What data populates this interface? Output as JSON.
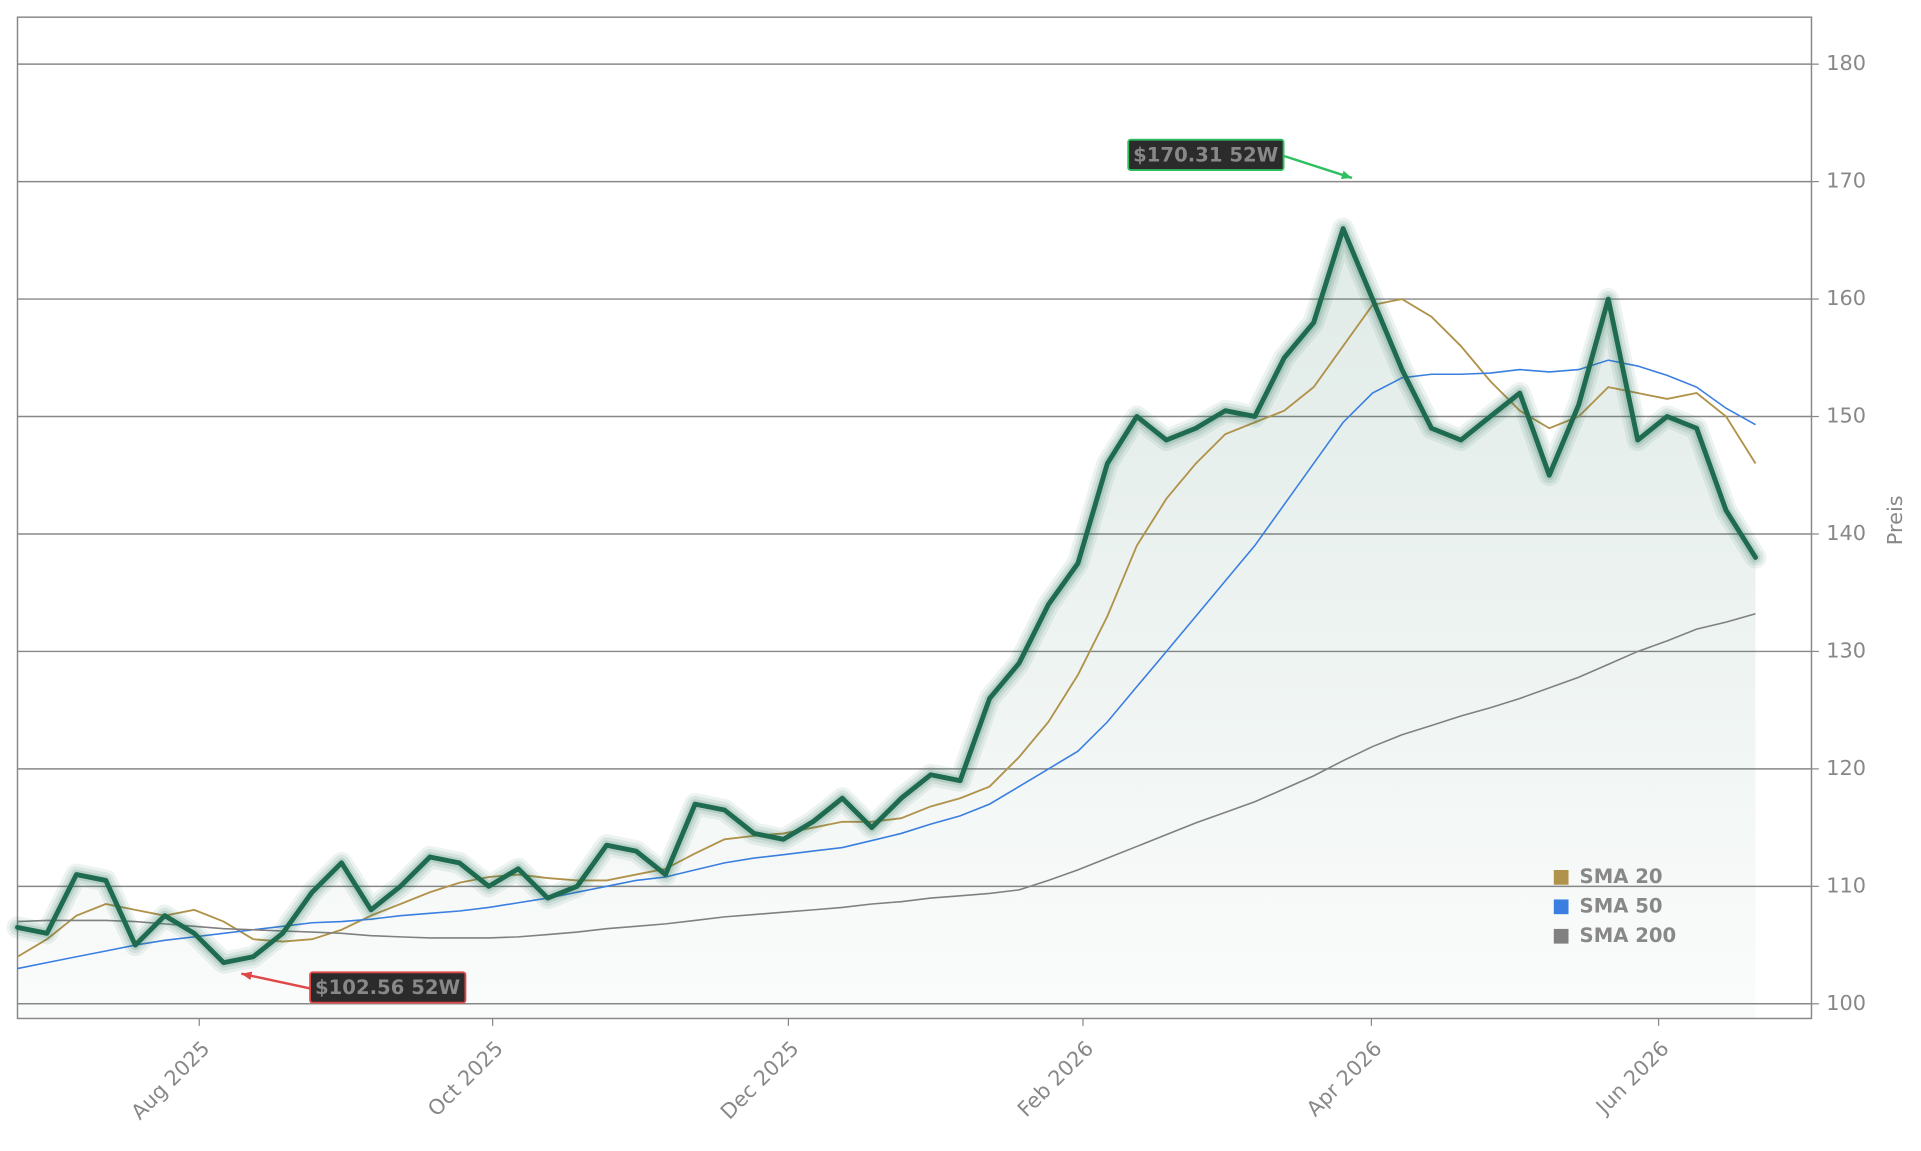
{
  "chart_data": {
    "type": "line",
    "y_label": "Preis",
    "xlim": [
      0,
      60.9
    ],
    "xticks": [
      {
        "value": 6.17,
        "label": "Aug 2025"
      },
      {
        "value": 16.13,
        "label": "Oct 2025"
      },
      {
        "value": 26.17,
        "label": "Dec 2025"
      },
      {
        "value": 36.17,
        "label": "Feb 2026"
      },
      {
        "value": 45.96,
        "label": "Apr 2026"
      },
      {
        "value": 55.71,
        "label": "Jun 2026"
      }
    ],
    "ylim": [
      98.75,
      184
    ],
    "yticks": [
      100,
      110,
      120,
      130,
      140,
      150,
      160,
      170,
      180
    ],
    "grid": true,
    "legend": "lower right",
    "series": [
      {
        "color": "#1e6b50",
        "values": [
          106.5,
          106,
          111,
          110.5,
          105,
          107.5,
          106,
          103.5,
          104,
          106,
          109.5,
          112,
          108,
          110,
          112.5,
          112,
          110,
          111.5,
          109,
          110,
          113.5,
          113,
          111,
          117,
          116.5,
          114.5,
          114,
          115.5,
          117.5,
          115,
          117.5,
          119.5,
          119,
          126,
          129,
          134,
          137.5,
          146,
          150,
          148,
          149,
          150.5,
          150,
          155,
          158,
          166,
          160,
          154,
          149,
          148,
          150,
          152,
          145,
          151,
          160,
          148,
          150,
          149,
          142,
          138
        ]
      },
      {
        "name": "SMA 20",
        "color": "#b0924a",
        "values": [
          104,
          105.5,
          107.5,
          108.5,
          108,
          107.5,
          108,
          107,
          105.5,
          105.3,
          105.5,
          106.3,
          107.5,
          108.5,
          109.5,
          110.3,
          110.8,
          111,
          110.7,
          110.5,
          110.5,
          111,
          111.5,
          112.8,
          114,
          114.3,
          114.5,
          115,
          115.5,
          115.5,
          115.8,
          116.8,
          117.5,
          118.5,
          121,
          124,
          128,
          133,
          139,
          143,
          146,
          148.5,
          149.5,
          150.5,
          152.5,
          156,
          159.5,
          160,
          158.5,
          156,
          153,
          150.5,
          149,
          150,
          152.5,
          152,
          151.5,
          152,
          150,
          146
        ]
      },
      {
        "name": "SMA 50",
        "color": "#3a7fe0",
        "values": [
          103,
          103.5,
          104,
          104.5,
          105,
          105.4,
          105.7,
          106,
          106.3,
          106.6,
          106.9,
          107,
          107.2,
          107.5,
          107.7,
          107.9,
          108.2,
          108.6,
          109,
          109.5,
          110,
          110.5,
          110.8,
          111.4,
          112,
          112.4,
          112.7,
          113,
          113.3,
          113.9,
          114.5,
          115.3,
          116,
          117,
          118.5,
          120,
          121.5,
          124,
          127,
          130,
          133,
          136,
          139,
          142.5,
          146,
          149.5,
          152,
          153.3,
          153.6,
          153.6,
          153.7,
          154,
          153.8,
          154,
          154.8,
          154.3,
          153.5,
          152.5,
          150.7,
          149.3
        ]
      },
      {
        "name": "SMA 200",
        "color": "#808080",
        "values": [
          107,
          107.1,
          107.1,
          107.1,
          107,
          106.8,
          106.6,
          106.4,
          106.3,
          106.2,
          106.1,
          106,
          105.8,
          105.7,
          105.6,
          105.6,
          105.6,
          105.7,
          105.9,
          106.1,
          106.4,
          106.6,
          106.8,
          107.1,
          107.4,
          107.6,
          107.8,
          108,
          108.2,
          108.5,
          108.7,
          109,
          109.2,
          109.4,
          109.7,
          110.5,
          111.4,
          112.4,
          113.4,
          114.4,
          115.4,
          116.3,
          117.2,
          118.3,
          119.4,
          120.7,
          121.9,
          122.9,
          123.7,
          124.5,
          125.2,
          126,
          126.9,
          127.8,
          128.9,
          130,
          130.9,
          131.9,
          132.5,
          133.2
        ]
      }
    ],
    "annotations": [
      {
        "text": "$170.31 52W",
        "value": 170.31,
        "index": 45.3,
        "color": "#2ec060"
      },
      {
        "text": "$102.56 52W",
        "value": 102.56,
        "index": 7.6,
        "color": "#e04848"
      }
    ]
  }
}
